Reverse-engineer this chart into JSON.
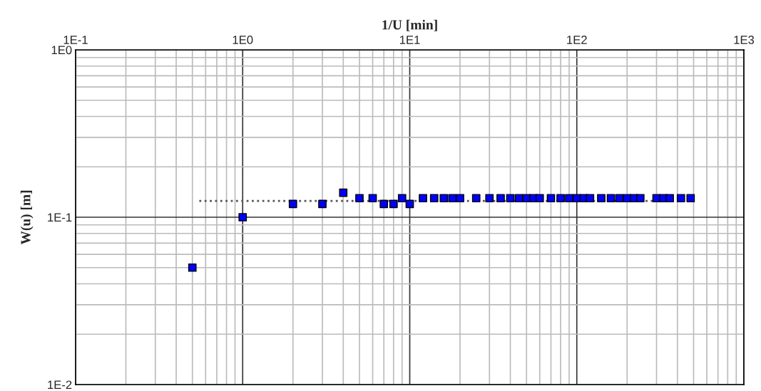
{
  "chart_data": {
    "type": "scatter",
    "xlabel": "1/U [min]",
    "ylabel": "W(u) [m]",
    "log": "xy",
    "grid": true,
    "xlim": [
      0.1,
      1000
    ],
    "xticks": [
      {
        "value": 0.1,
        "label": "1E-1"
      },
      {
        "value": 1,
        "label": "1E0"
      },
      {
        "value": 10,
        "label": "1E1"
      },
      {
        "value": 100,
        "label": "1E2"
      },
      {
        "value": 1000,
        "label": "1E3"
      }
    ],
    "ylim": [
      0.01,
      1
    ],
    "yticks": [
      {
        "value": 0.01,
        "label": "1E-2"
      },
      {
        "value": 0.1,
        "label": "1E-1"
      },
      {
        "value": 1,
        "label": "1E0"
      }
    ],
    "series": [
      {
        "marker": "square",
        "color": "#0000ff",
        "x": [
          0.5,
          1,
          2,
          3,
          4,
          5,
          6,
          7,
          8,
          9,
          10,
          12,
          14,
          16,
          18,
          20,
          25,
          30,
          35,
          40,
          45,
          50,
          55,
          60,
          70,
          80,
          90,
          100,
          110,
          120,
          140,
          160,
          180,
          200,
          220,
          240,
          300,
          330,
          360,
          420,
          480
        ],
        "values": [
          0.05,
          0.1,
          0.12,
          0.12,
          0.14,
          0.13,
          0.13,
          0.12,
          0.12,
          0.13,
          0.12,
          0.13,
          0.13,
          0.13,
          0.13,
          0.13,
          0.13,
          0.13,
          0.13,
          0.13,
          0.13,
          0.13,
          0.13,
          0.13,
          0.13,
          0.13,
          0.13,
          0.13,
          0.13,
          0.13,
          0.13,
          0.13,
          0.13,
          0.13,
          0.13,
          0.13,
          0.13,
          0.13,
          0.13,
          0.13,
          0.13
        ]
      },
      {
        "type": "line",
        "marker": "none",
        "color": "#555555",
        "line_style": "dotted",
        "x": [
          0.55,
          480
        ],
        "values": [
          0.125,
          0.125
        ]
      }
    ]
  }
}
